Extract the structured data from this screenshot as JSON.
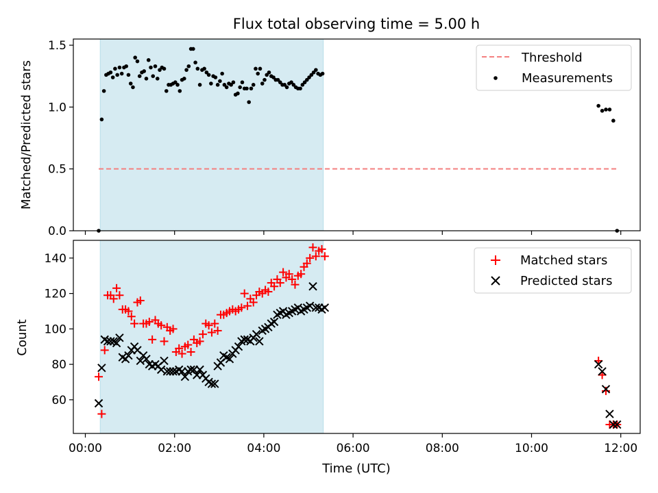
{
  "chart_data": [
    {
      "type": "scatter",
      "title": "Flux total observing time = 5.00 h",
      "xlabel": "",
      "ylabel": "Matched/Predicted stars",
      "xlim": [
        "00:00",
        "12:00"
      ],
      "ylim": [
        0.0,
        1.55
      ],
      "y_ticks": [
        0.0,
        0.5,
        1.0,
        1.5
      ],
      "y_tick_labels": [
        "0.0",
        "0.5",
        "1.0",
        "1.5"
      ],
      "x_tick_labels": [
        "00:00",
        "02:00",
        "04:00",
        "06:00",
        "08:00",
        "10:00",
        "12:00"
      ],
      "x_tick_labels_visible": false,
      "shaded_span": [
        "00:20",
        "05:20"
      ],
      "legend": {
        "placement": "top-right"
      },
      "series": [
        {
          "name": "Threshold",
          "kind": "dashed-line",
          "color": "#f47f7f",
          "x": [
            "00:18",
            "11:54"
          ],
          "y": [
            0.5,
            0.5
          ]
        },
        {
          "name": "Measurements",
          "kind": "points",
          "color": "#000000",
          "x": [
            "00:18",
            "00:22",
            "00:25",
            "00:28",
            "00:31",
            "00:34",
            "00:37",
            "00:40",
            "00:43",
            "00:46",
            "00:49",
            "00:52",
            "00:55",
            "00:58",
            "01:01",
            "01:04",
            "01:07",
            "01:10",
            "01:13",
            "01:16",
            "01:19",
            "01:22",
            "01:25",
            "01:28",
            "01:31",
            "01:34",
            "01:37",
            "01:40",
            "01:43",
            "01:46",
            "01:49",
            "01:52",
            "01:55",
            "01:58",
            "02:01",
            "02:04",
            "02:07",
            "02:10",
            "02:13",
            "02:16",
            "02:19",
            "02:22",
            "02:25",
            "02:28",
            "02:31",
            "02:34",
            "02:37",
            "02:40",
            "02:43",
            "02:46",
            "02:49",
            "02:52",
            "02:55",
            "02:58",
            "03:01",
            "03:04",
            "03:07",
            "03:10",
            "03:13",
            "03:16",
            "03:19",
            "03:22",
            "03:25",
            "03:28",
            "03:31",
            "03:34",
            "03:37",
            "03:40",
            "03:43",
            "03:46",
            "03:49",
            "03:52",
            "03:55",
            "03:58",
            "04:01",
            "04:04",
            "04:07",
            "04:10",
            "04:13",
            "04:16",
            "04:19",
            "04:22",
            "04:25",
            "04:28",
            "04:31",
            "04:34",
            "04:37",
            "04:40",
            "04:43",
            "04:46",
            "04:49",
            "04:52",
            "04:55",
            "04:58",
            "05:01",
            "05:04",
            "05:07",
            "05:10",
            "05:13",
            "05:16",
            "05:19",
            "11:30",
            "11:35",
            "11:40",
            "11:45",
            "11:50",
            "11:55"
          ],
          "y": [
            0.0,
            0.9,
            1.13,
            1.26,
            1.27,
            1.28,
            1.24,
            1.31,
            1.26,
            1.32,
            1.27,
            1.32,
            1.33,
            1.26,
            1.19,
            1.16,
            1.4,
            1.37,
            1.25,
            1.28,
            1.29,
            1.23,
            1.38,
            1.32,
            1.25,
            1.33,
            1.23,
            1.3,
            1.32,
            1.31,
            1.13,
            1.18,
            1.18,
            1.19,
            1.2,
            1.18,
            1.13,
            1.22,
            1.23,
            1.3,
            1.33,
            1.47,
            1.47,
            1.36,
            1.31,
            1.18,
            1.3,
            1.31,
            1.28,
            1.26,
            1.19,
            1.25,
            1.24,
            1.18,
            1.21,
            1.27,
            1.18,
            1.16,
            1.19,
            1.18,
            1.2,
            1.1,
            1.11,
            1.16,
            1.2,
            1.15,
            1.15,
            1.04,
            1.15,
            1.18,
            1.31,
            1.27,
            1.31,
            1.19,
            1.22,
            1.26,
            1.28,
            1.25,
            1.24,
            1.22,
            1.22,
            1.2,
            1.18,
            1.18,
            1.16,
            1.19,
            1.2,
            1.18,
            1.16,
            1.15,
            1.15,
            1.18,
            1.2,
            1.22,
            1.24,
            1.26,
            1.28,
            1.3,
            1.27,
            1.26,
            1.27,
            1.01,
            0.97,
            0.98,
            0.98,
            0.89,
            0.0
          ]
        }
      ]
    },
    {
      "type": "scatter",
      "title": "",
      "xlabel": "Time (UTC)",
      "ylabel": "Count",
      "xlim": [
        "00:00",
        "12:00"
      ],
      "ylim": [
        41,
        150
      ],
      "y_ticks": [
        60,
        80,
        100,
        120,
        140
      ],
      "y_tick_labels": [
        "60",
        "80",
        "100",
        "120",
        "140"
      ],
      "x_tick_labels": [
        "00:00",
        "02:00",
        "04:00",
        "06:00",
        "08:00",
        "10:00",
        "12:00"
      ],
      "x_tick_labels_visible": true,
      "shaded_span": [
        "00:20",
        "05:20"
      ],
      "legend": {
        "placement": "top-right"
      },
      "series": [
        {
          "name": "Matched stars",
          "kind": "plus",
          "color": "#ff0000",
          "x": [
            "00:18",
            "00:22",
            "00:26",
            "00:30",
            "00:34",
            "00:38",
            "00:42",
            "00:46",
            "00:50",
            "00:54",
            "00:58",
            "01:02",
            "01:06",
            "01:10",
            "01:14",
            "01:18",
            "01:22",
            "01:26",
            "01:30",
            "01:34",
            "01:38",
            "01:42",
            "01:46",
            "01:50",
            "01:54",
            "01:58",
            "02:02",
            "02:06",
            "02:10",
            "02:14",
            "02:18",
            "02:22",
            "02:26",
            "02:30",
            "02:34",
            "02:38",
            "02:42",
            "02:46",
            "02:50",
            "02:54",
            "02:58",
            "03:02",
            "03:06",
            "03:10",
            "03:14",
            "03:18",
            "03:22",
            "03:26",
            "03:30",
            "03:34",
            "03:38",
            "03:42",
            "03:46",
            "03:50",
            "03:54",
            "03:58",
            "04:02",
            "04:06",
            "04:10",
            "04:14",
            "04:18",
            "04:22",
            "04:26",
            "04:30",
            "04:34",
            "04:38",
            "04:42",
            "04:46",
            "04:50",
            "04:54",
            "04:58",
            "05:02",
            "05:06",
            "05:10",
            "05:14",
            "05:18",
            "05:22",
            "11:30",
            "11:35",
            "11:40",
            "11:45",
            "11:50",
            "11:55"
          ],
          "y": [
            73,
            52,
            88,
            119,
            119,
            117,
            123,
            119,
            111,
            111,
            110,
            107,
            103,
            115,
            116,
            103,
            103,
            104,
            94,
            105,
            103,
            102,
            93,
            101,
            99,
            100,
            87,
            89,
            86,
            90,
            91,
            87,
            94,
            92,
            93,
            97,
            103,
            102,
            98,
            103,
            99,
            108,
            108,
            109,
            110,
            111,
            110,
            111,
            112,
            120,
            113,
            117,
            115,
            119,
            121,
            120,
            122,
            121,
            126,
            124,
            128,
            126,
            132,
            129,
            131,
            128,
            125,
            130,
            131,
            135,
            137,
            140,
            146,
            141,
            144,
            145,
            141,
            82,
            74,
            65,
            46,
            46,
            46
          ],
          "y_visible_subset_note": ""
        },
        {
          "name": "Predicted stars",
          "kind": "x",
          "color": "#000000",
          "x": [
            "00:18",
            "00:22",
            "00:26",
            "00:30",
            "00:34",
            "00:38",
            "00:42",
            "00:46",
            "00:50",
            "00:54",
            "00:58",
            "01:02",
            "01:06",
            "01:10",
            "01:14",
            "01:18",
            "01:22",
            "01:26",
            "01:30",
            "01:34",
            "01:38",
            "01:42",
            "01:46",
            "01:50",
            "01:54",
            "01:58",
            "02:02",
            "02:06",
            "02:10",
            "02:14",
            "02:18",
            "02:22",
            "02:26",
            "02:30",
            "02:34",
            "02:38",
            "02:42",
            "02:46",
            "02:50",
            "02:54",
            "02:58",
            "03:02",
            "03:06",
            "03:10",
            "03:14",
            "03:18",
            "03:22",
            "03:26",
            "03:30",
            "03:34",
            "03:38",
            "03:42",
            "03:46",
            "03:50",
            "03:54",
            "03:58",
            "04:02",
            "04:06",
            "04:10",
            "04:14",
            "04:18",
            "04:22",
            "04:26",
            "04:30",
            "04:34",
            "04:38",
            "04:42",
            "04:46",
            "04:50",
            "04:54",
            "04:58",
            "05:02",
            "05:06",
            "05:10",
            "05:14",
            "05:18",
            "05:22",
            "11:30",
            "11:35",
            "11:40",
            "11:45",
            "11:50",
            "11:55"
          ],
          "y": [
            58,
            78,
            94,
            93,
            93,
            93,
            92,
            95,
            84,
            83,
            85,
            88,
            90,
            88,
            82,
            85,
            83,
            80,
            79,
            80,
            79,
            77,
            82,
            76,
            76,
            76,
            76,
            77,
            76,
            73,
            76,
            77,
            77,
            74,
            77,
            74,
            72,
            70,
            69,
            69,
            79,
            81,
            85,
            84,
            83,
            86,
            88,
            90,
            93,
            94,
            94,
            93,
            95,
            97,
            93,
            99,
            100,
            101,
            103,
            104,
            108,
            109,
            110,
            108,
            109,
            110,
            111,
            112,
            110,
            111,
            112,
            113,
            124,
            112,
            112,
            111,
            112,
            80,
            76,
            66,
            52,
            46,
            46
          ]
        }
      ]
    }
  ]
}
